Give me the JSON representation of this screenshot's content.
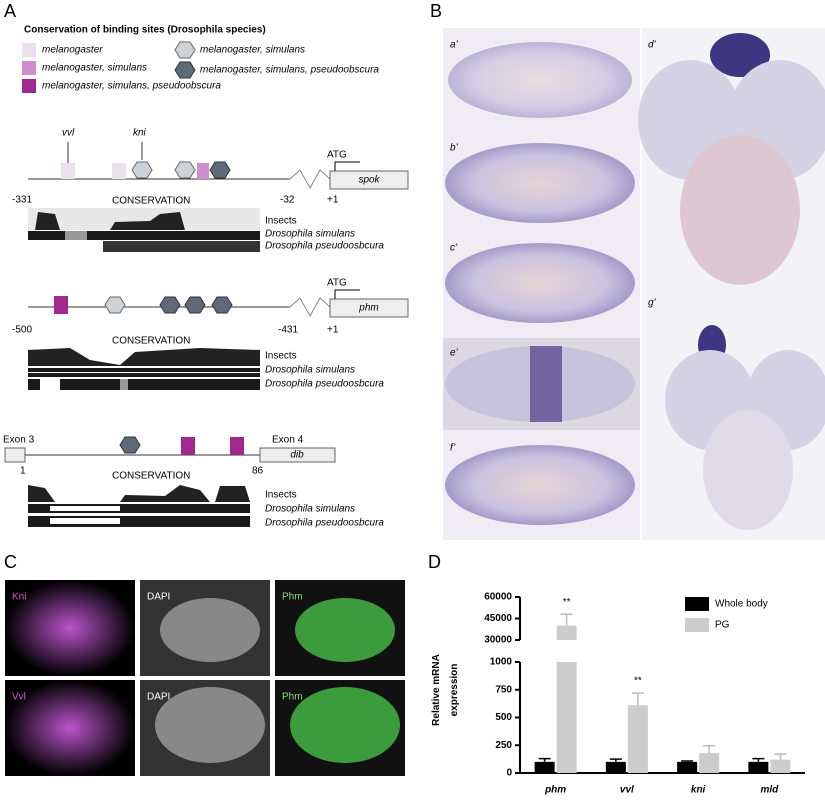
{
  "panel_a": {
    "label": "A",
    "legend_title": "Conservation of binding sites (Drosophila species)",
    "legend": [
      "melanogaster",
      "melanogaster, simulans",
      "melanogaster, simulans, pseudoobscura",
      "melanogaster, simulans",
      "melanogaster, simulans, pseudoobscura"
    ],
    "spok": {
      "sites": [
        "vvl",
        "kni"
      ],
      "atg": "ATG",
      "gene": "spok",
      "positions": [
        "-331",
        "-32",
        "+1"
      ],
      "conservation": "CONSERVATION",
      "tracks": [
        "Insects",
        "Drosophila simulans",
        "Drosophila pseudoosbcura"
      ]
    },
    "phm": {
      "atg": "ATG",
      "gene": "phm",
      "positions": [
        "-500",
        "-431",
        "+1"
      ],
      "conservation": "CONSERVATION",
      "tracks": [
        "Insects",
        "Drosophila simulans",
        "Drosophila pseudoosbcura"
      ]
    },
    "dib": {
      "exons": [
        "Exon 3",
        "Exon 4"
      ],
      "gene": "dib",
      "positions": [
        "1",
        "86"
      ],
      "conservation": "CONSERVATION",
      "tracks": [
        "Insects",
        "Drosophila simulans",
        "Drosophila pseudoosbcura"
      ]
    }
  },
  "panel_b": {
    "label": "B",
    "images": [
      "a’",
      "b’",
      "c’",
      "d’",
      "e’",
      "f’",
      "g’"
    ]
  },
  "panel_c": {
    "label": "C",
    "images": [
      "Kni",
      "DAPI",
      "Phm",
      "Vvl",
      "DAPI",
      "Phm"
    ]
  },
  "panel_d": {
    "label": "D"
  },
  "chart_data": {
    "type": "bar",
    "y_label_lines": [
      "Relative mRNA",
      "expression"
    ],
    "categories": [
      "phm",
      "vvl",
      "kni",
      "mld"
    ],
    "series": [
      {
        "name": "Whole body",
        "color": "#000000",
        "values": [
          100,
          100,
          100,
          100
        ],
        "errors": [
          30,
          25,
          8,
          30
        ]
      },
      {
        "name": "PG",
        "color": "#cccccc",
        "values": [
          40000,
          610,
          180,
          120
        ],
        "errors": [
          8000,
          110,
          65,
          50
        ]
      }
    ],
    "significance": [
      "**",
      "**",
      null,
      null
    ],
    "y_segments": [
      {
        "ylim": [
          0,
          1000
        ],
        "yticks": [
          0,
          250,
          500,
          750,
          1000
        ]
      },
      {
        "ylim": [
          30000,
          60000
        ],
        "yticks": [
          30000,
          45000,
          60000
        ]
      }
    ],
    "legend": "top-right"
  }
}
